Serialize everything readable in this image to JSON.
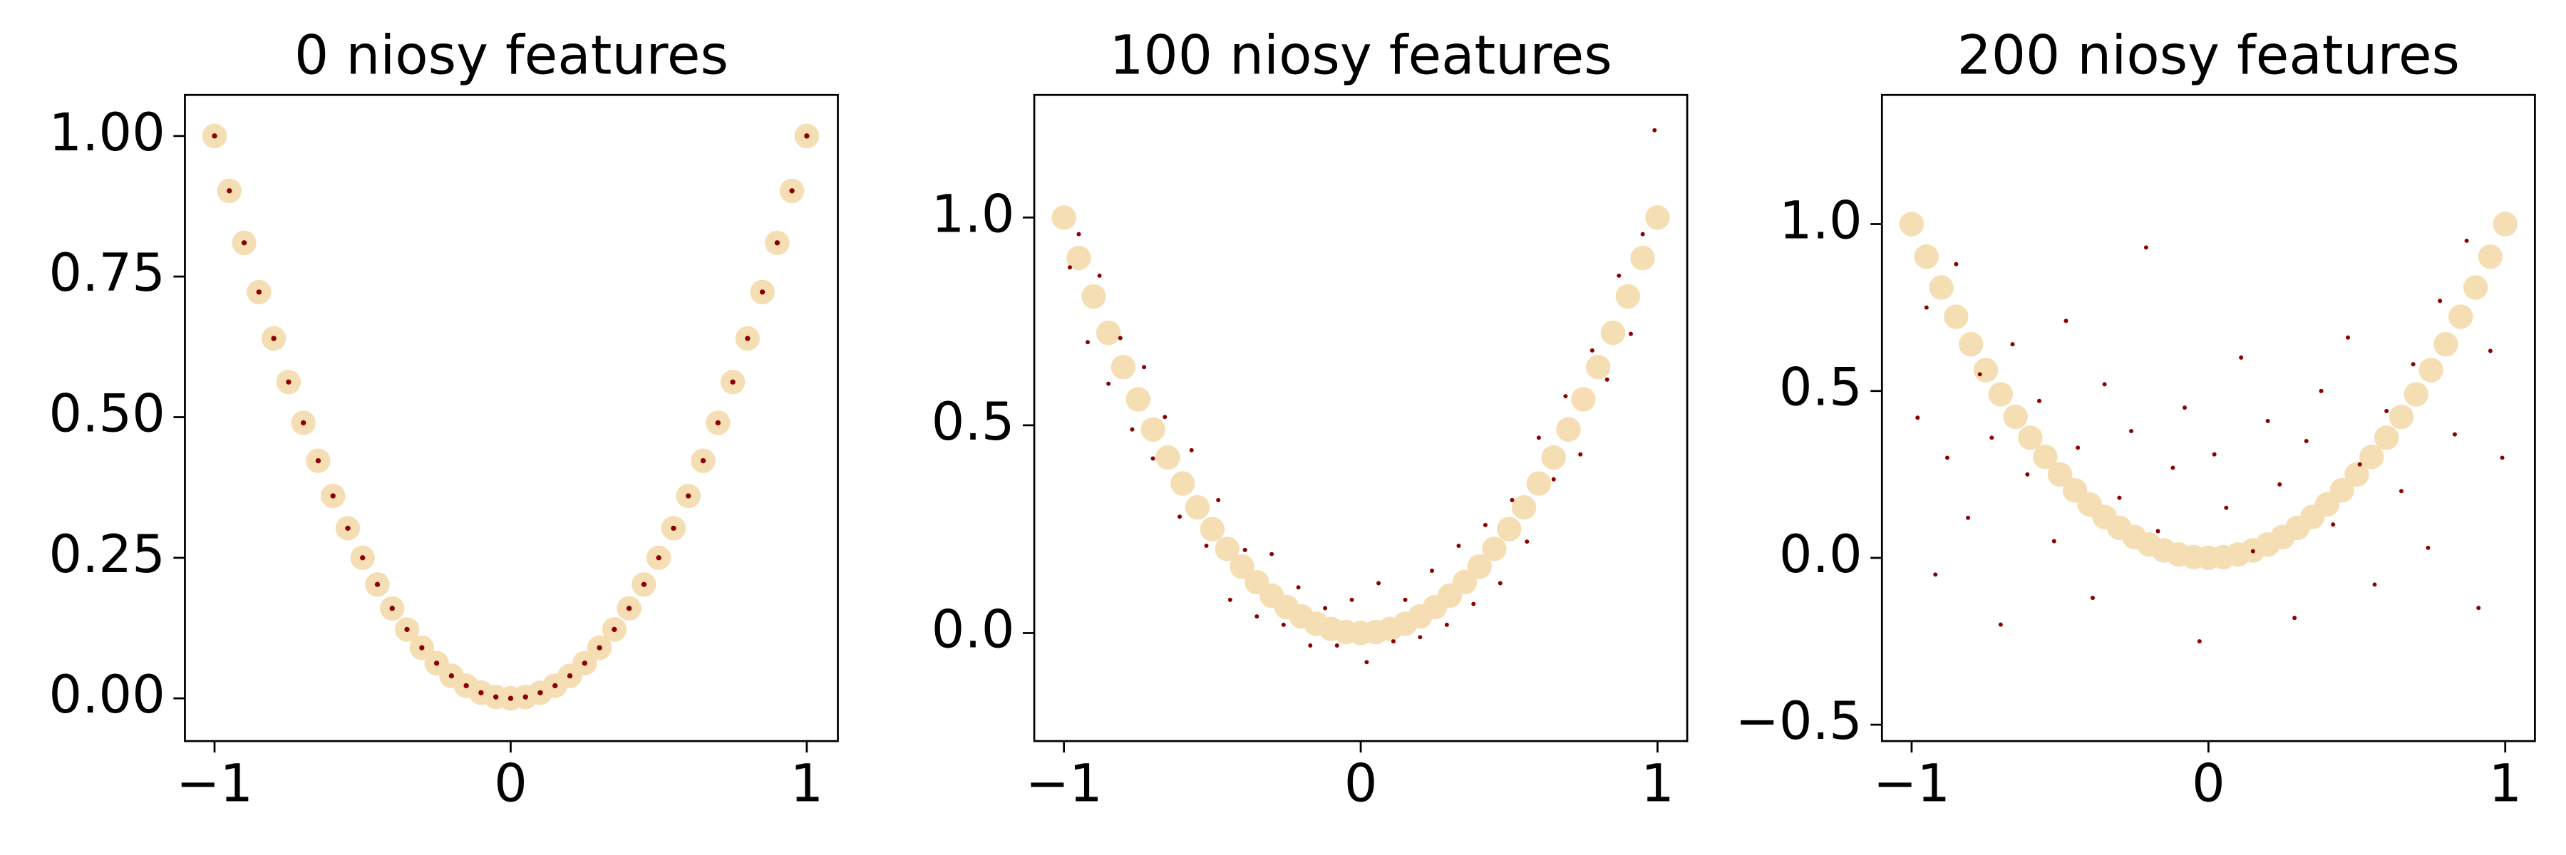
{
  "chart_data": [
    {
      "type": "scatter",
      "title": "0 niosy features",
      "xlim": [
        -1.1,
        1.105
      ],
      "ylim": [
        -0.076,
        1.073
      ],
      "xticks": [
        {
          "value": -1,
          "label": "−1"
        },
        0,
        1
      ],
      "yticks": [
        {
          "value": 0,
          "label": "0.00"
        },
        0.25,
        {
          "value": 0.5,
          "label": "0.50"
        },
        0.75,
        {
          "value": 1,
          "label": "1.00"
        }
      ],
      "series": [
        {
          "color": "#f5deb3",
          "x": [
            -1,
            -0.95,
            -0.9,
            -0.85,
            -0.8,
            -0.75,
            -0.7,
            -0.65,
            -0.6,
            -0.55,
            -0.5,
            -0.45,
            -0.4,
            -0.35,
            -0.3,
            -0.25,
            -0.2,
            -0.15,
            -0.1,
            -0.05,
            0,
            0.05,
            0.1,
            0.15,
            0.2,
            0.25,
            0.3,
            0.35,
            0.4,
            0.45,
            0.5,
            0.55,
            0.6,
            0.65,
            0.7,
            0.75,
            0.8,
            0.85,
            0.9,
            0.95,
            1
          ],
          "values": [
            1,
            0.9025,
            0.81,
            0.7225,
            0.64,
            0.5625,
            0.49,
            0.4225,
            0.36,
            0.3025,
            0.25,
            0.2025,
            0.16,
            0.1225,
            0.09,
            0.0625,
            0.04,
            0.0225,
            0.01,
            0.0025,
            0,
            0.0025,
            0.01,
            0.0225,
            0.04,
            0.0625,
            0.09,
            0.1225,
            0.16,
            0.2025,
            0.25,
            0.3025,
            0.36,
            0.4225,
            0.49,
            0.5625,
            0.64,
            0.7225,
            0.81,
            0.9025,
            1
          ]
        },
        {
          "color": "#8b0000",
          "x": [
            -1,
            -0.95,
            -0.9,
            -0.85,
            -0.8,
            -0.75,
            -0.7,
            -0.65,
            -0.6,
            -0.55,
            -0.5,
            -0.45,
            -0.4,
            -0.35,
            -0.3,
            -0.25,
            -0.2,
            -0.15,
            -0.1,
            -0.05,
            0,
            0.05,
            0.1,
            0.15,
            0.2,
            0.25,
            0.3,
            0.35,
            0.4,
            0.45,
            0.5,
            0.55,
            0.6,
            0.65,
            0.7,
            0.75,
            0.8,
            0.85,
            0.9,
            0.95,
            1
          ],
          "values": [
            1,
            0.9025,
            0.81,
            0.7225,
            0.64,
            0.5625,
            0.49,
            0.4225,
            0.36,
            0.3025,
            0.25,
            0.2025,
            0.16,
            0.1225,
            0.09,
            0.0625,
            0.04,
            0.0225,
            0.01,
            0.0025,
            0,
            0.0025,
            0.01,
            0.0225,
            0.04,
            0.0625,
            0.09,
            0.1225,
            0.16,
            0.2025,
            0.25,
            0.3025,
            0.36,
            0.4225,
            0.49,
            0.5625,
            0.64,
            0.7225,
            0.81,
            0.9025,
            1
          ]
        }
      ]
    },
    {
      "type": "scatter",
      "title": "100 niosy features",
      "xlim": [
        -1.1,
        1.1
      ],
      "ylim": [
        -0.26,
        1.295
      ],
      "xticks": [
        {
          "value": -1,
          "label": "−1"
        },
        0,
        1
      ],
      "yticks": [
        {
          "value": 0,
          "label": "0.0"
        },
        0.5,
        {
          "value": 1,
          "label": "1.0"
        }
      ],
      "series": [
        {
          "color": "#f5deb3",
          "x": [
            -1,
            -0.95,
            -0.9,
            -0.85,
            -0.8,
            -0.75,
            -0.7,
            -0.65,
            -0.6,
            -0.55,
            -0.5,
            -0.45,
            -0.4,
            -0.35,
            -0.3,
            -0.25,
            -0.2,
            -0.15,
            -0.1,
            -0.05,
            0,
            0.05,
            0.1,
            0.15,
            0.2,
            0.25,
            0.3,
            0.35,
            0.4,
            0.45,
            0.5,
            0.55,
            0.6,
            0.65,
            0.7,
            0.75,
            0.8,
            0.85,
            0.9,
            0.95,
            1
          ],
          "values": [
            1,
            0.9025,
            0.81,
            0.7225,
            0.64,
            0.5625,
            0.49,
            0.4225,
            0.36,
            0.3025,
            0.25,
            0.2025,
            0.16,
            0.1225,
            0.09,
            0.0625,
            0.04,
            0.0225,
            0.01,
            0.0025,
            0,
            0.0025,
            0.01,
            0.0225,
            0.04,
            0.0625,
            0.09,
            0.1225,
            0.16,
            0.2025,
            0.25,
            0.3025,
            0.36,
            0.4225,
            0.49,
            0.5625,
            0.64,
            0.7225,
            0.81,
            0.9025,
            1
          ]
        },
        {
          "color": "#8b0000",
          "x": [
            -0.98,
            -0.95,
            -0.92,
            -0.88,
            -0.85,
            -0.81,
            -0.77,
            -0.73,
            -0.7,
            -0.66,
            -0.61,
            -0.57,
            -0.52,
            -0.48,
            -0.44,
            -0.39,
            -0.35,
            -0.3,
            -0.26,
            -0.21,
            -0.17,
            -0.12,
            -0.08,
            -0.03,
            0.02,
            0.06,
            0.11,
            0.15,
            0.2,
            0.24,
            0.29,
            0.33,
            0.38,
            0.42,
            0.47,
            0.51,
            0.56,
            0.6,
            0.65,
            0.69,
            0.74,
            0.78,
            0.83,
            0.87,
            0.91,
            0.95,
            0.99
          ],
          "values": [
            0.88,
            0.96,
            0.7,
            0.86,
            0.6,
            0.71,
            0.49,
            0.64,
            0.42,
            0.52,
            0.28,
            0.44,
            0.21,
            0.32,
            0.08,
            0.2,
            0.04,
            0.19,
            0.02,
            0.11,
            -0.03,
            0.06,
            -0.03,
            0.08,
            -0.07,
            0.12,
            -0.02,
            0.08,
            -0.01,
            0.15,
            0.02,
            0.21,
            0.07,
            0.26,
            0.12,
            0.32,
            0.22,
            0.47,
            0.37,
            0.57,
            0.43,
            0.68,
            0.61,
            0.86,
            0.72,
            0.96,
            1.21
          ]
        }
      ]
    },
    {
      "type": "scatter",
      "title": "200 niosy features",
      "xlim": [
        -1.1,
        1.1
      ],
      "ylim": [
        -0.549,
        1.387
      ],
      "xticks": [
        {
          "value": -1,
          "label": "−1"
        },
        0,
        1
      ],
      "yticks": [
        {
          "value": -0.5,
          "label": "−0.5"
        },
        {
          "value": 0,
          "label": "0.0"
        },
        0.5,
        {
          "value": 1,
          "label": "1.0"
        }
      ],
      "series": [
        {
          "color": "#f5deb3",
          "x": [
            -1,
            -0.95,
            -0.9,
            -0.85,
            -0.8,
            -0.75,
            -0.7,
            -0.65,
            -0.6,
            -0.55,
            -0.5,
            -0.45,
            -0.4,
            -0.35,
            -0.3,
            -0.25,
            -0.2,
            -0.15,
            -0.1,
            -0.05,
            0,
            0.05,
            0.1,
            0.15,
            0.2,
            0.25,
            0.3,
            0.35,
            0.4,
            0.45,
            0.5,
            0.55,
            0.6,
            0.65,
            0.7,
            0.75,
            0.8,
            0.85,
            0.9,
            0.95,
            1
          ],
          "values": [
            1,
            0.9025,
            0.81,
            0.7225,
            0.64,
            0.5625,
            0.49,
            0.4225,
            0.36,
            0.3025,
            0.25,
            0.2025,
            0.16,
            0.1225,
            0.09,
            0.0625,
            0.04,
            0.0225,
            0.01,
            0.0025,
            0,
            0.0025,
            0.01,
            0.0225,
            0.04,
            0.0625,
            0.09,
            0.1225,
            0.16,
            0.2025,
            0.25,
            0.3025,
            0.36,
            0.4225,
            0.49,
            0.5625,
            0.64,
            0.7225,
            0.81,
            0.9025,
            1
          ]
        },
        {
          "color": "#8b0000",
          "x": [
            -0.98,
            -0.95,
            -0.92,
            -0.88,
            -0.85,
            -0.81,
            -0.77,
            -0.73,
            -0.7,
            -0.66,
            -0.61,
            -0.57,
            -0.52,
            -0.48,
            -0.44,
            -0.39,
            -0.35,
            -0.3,
            -0.26,
            -0.21,
            -0.17,
            -0.12,
            -0.08,
            -0.03,
            0.02,
            0.06,
            0.11,
            0.15,
            0.2,
            0.24,
            0.29,
            0.33,
            0.38,
            0.42,
            0.47,
            0.51,
            0.56,
            0.6,
            0.65,
            0.69,
            0.74,
            0.78,
            0.83,
            0.87,
            0.91,
            0.95,
            0.99
          ],
          "values": [
            0.42,
            0.75,
            -0.05,
            0.3,
            0.88,
            0.12,
            0.55,
            0.36,
            -0.2,
            0.64,
            0.25,
            0.47,
            0.05,
            0.71,
            0.33,
            -0.12,
            0.52,
            0.18,
            0.38,
            0.93,
            0.08,
            0.27,
            0.45,
            -0.25,
            0.31,
            0.15,
            0.6,
            0.02,
            0.41,
            0.22,
            -0.18,
            0.35,
            0.5,
            0.1,
            0.66,
            0.28,
            -0.08,
            0.44,
            0.2,
            0.58,
            0.03,
            0.77,
            0.37,
            0.95,
            -0.15,
            0.62,
            0.3
          ]
        }
      ]
    }
  ]
}
